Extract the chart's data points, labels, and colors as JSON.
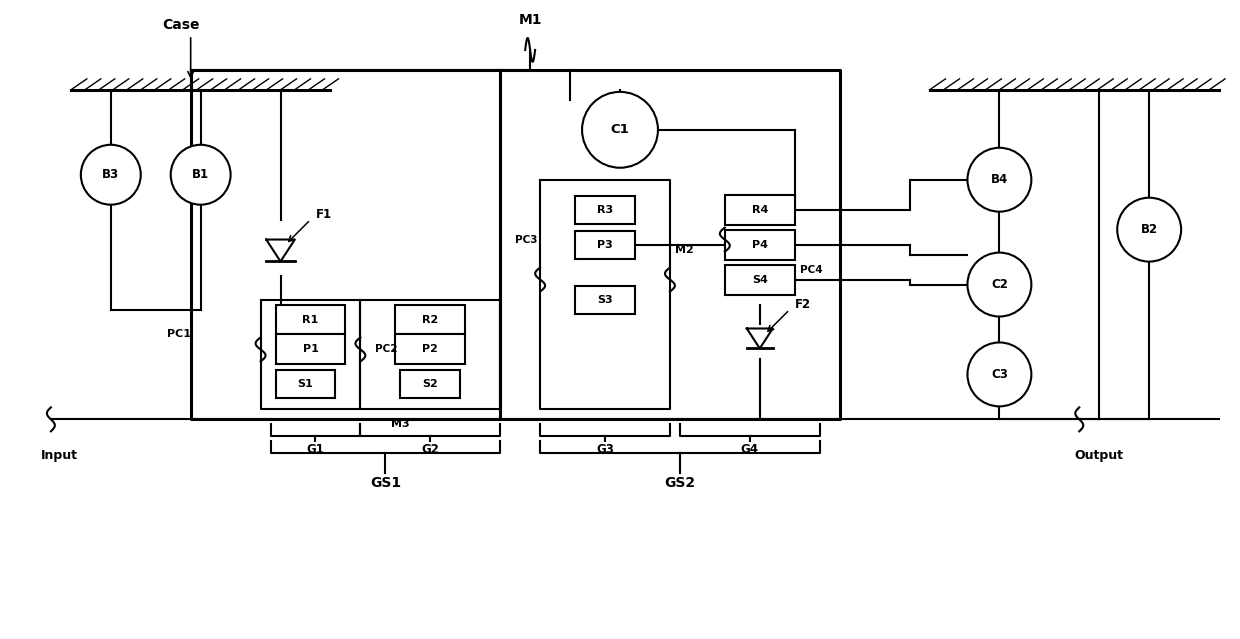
{
  "bg": "#ffffff",
  "figsize": [
    12.4,
    6.39
  ],
  "dpi": 100,
  "xlim": [
    0,
    124
  ],
  "ylim": [
    0,
    64
  ]
}
